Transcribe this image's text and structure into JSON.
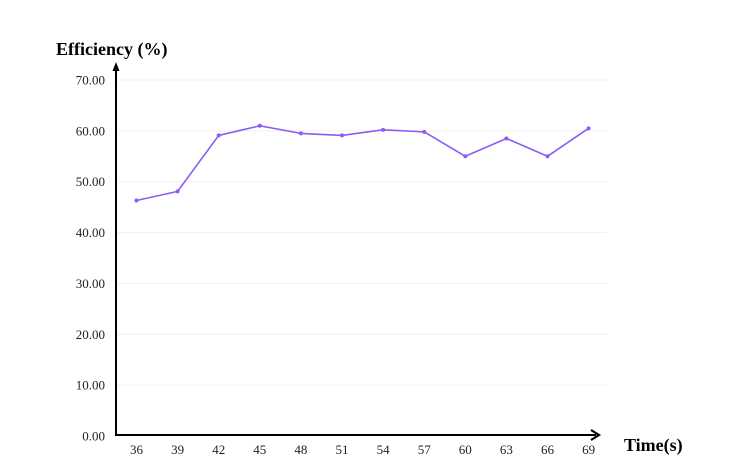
{
  "chart_data": {
    "type": "line",
    "ylabel": "Efficiency (%)",
    "xlabel": "Time(s)",
    "x": [
      "36",
      "39",
      "42",
      "45",
      "48",
      "51",
      "54",
      "57",
      "60",
      "63",
      "66",
      "69"
    ],
    "series": [
      {
        "values": [
          46.3,
          48.1,
          59.1,
          61.0,
          59.5,
          59.1,
          60.2,
          59.8,
          55.0,
          58.5,
          55.0,
          60.5
        ]
      }
    ],
    "yticks": [
      "0.00",
      "10.00",
      "20.00",
      "30.00",
      "40.00",
      "50.00",
      "60.00",
      "70.00"
    ],
    "ylim": [
      0,
      70
    ],
    "grid": true,
    "colors": {
      "line": "#8b5cf6",
      "axis": "#000000",
      "grid": "#f0f0f0"
    }
  }
}
